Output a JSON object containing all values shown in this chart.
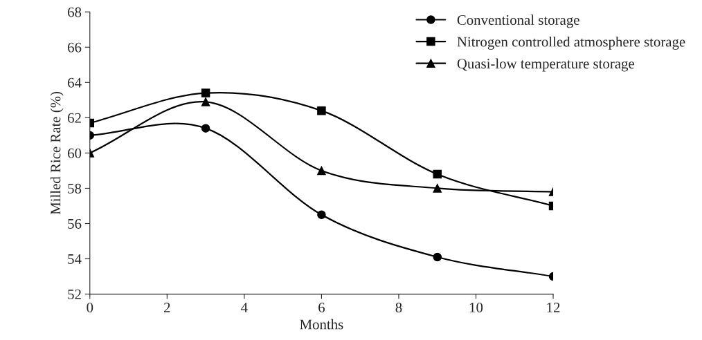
{
  "chart_data": {
    "type": "line",
    "xlabel": "Months",
    "ylabel": "Milled Rice Rate (%)",
    "x": [
      0,
      3,
      6,
      9,
      12
    ],
    "series": [
      {
        "name": "Conventional storage",
        "color": "#000000",
        "marker": "circle",
        "values": [
          61.0,
          61.4,
          56.5,
          54.1,
          53.0
        ]
      },
      {
        "name": "Nitrogen controlled atmosphere storage",
        "color": "#000000",
        "marker": "square",
        "values": [
          61.7,
          63.4,
          62.4,
          58.8,
          57.0
        ]
      },
      {
        "name": "Quasi-low temperature storage",
        "color": "#000000",
        "marker": "triangle",
        "values": [
          60.0,
          62.9,
          59.0,
          58.0,
          57.8
        ]
      }
    ],
    "xlim": [
      0,
      12
    ],
    "xticks": [
      0,
      2,
      4,
      6,
      8,
      10,
      12
    ],
    "ylim": [
      52,
      68
    ],
    "yticks": [
      52,
      54,
      56,
      58,
      60,
      62,
      64,
      66,
      68
    ],
    "grid": false,
    "legend": "top right",
    "line_style": "solid"
  }
}
